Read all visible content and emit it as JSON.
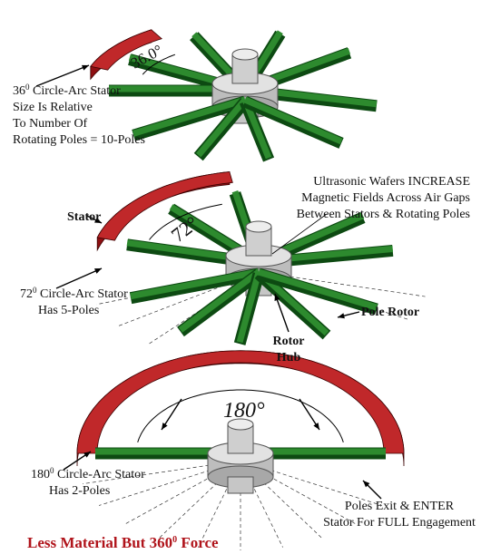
{
  "panels": [
    {
      "arc_label": "36.0°",
      "note": {
        "base": "36",
        "sup": "0",
        "rest": " Circle-Arc Stator",
        "lines": [
          "Size Is Relative",
          "To Number Of",
          "Rotating Poles = 10-Poles"
        ]
      }
    },
    {
      "arc_label": "72°",
      "stator_label": "Stator",
      "note": {
        "base": "72",
        "sup": "0",
        "rest": " Circle-Arc Stator",
        "lines": [
          "Has 5-Poles"
        ]
      },
      "wafer_note": [
        "Ultrasonic Wafers INCREASE",
        "Magnetic Fields Across Air Gaps",
        "Between Stators & Rotating Poles"
      ],
      "pole_rotor_label": "Pole Rotor",
      "hub_label": [
        "Rotor",
        "Hub"
      ]
    },
    {
      "arc_label": "180°",
      "note": {
        "base": "180",
        "sup": "0",
        "rest": " Circle-Arc Stator",
        "lines": [
          "Has 2-Poles"
        ]
      },
      "exit_note": [
        "Poles Exit & ENTER",
        "Stator For FULL Engagement"
      ]
    }
  ],
  "footer": {
    "base": "Less Material But 360",
    "sup": "0",
    "rest": " Force"
  }
}
